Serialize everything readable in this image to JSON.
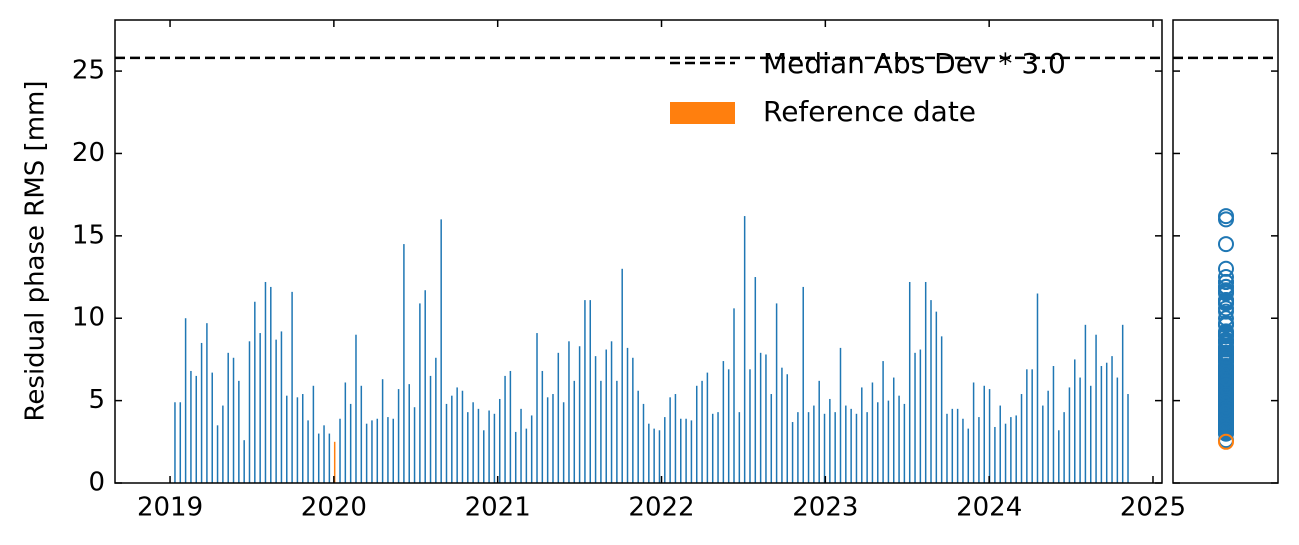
{
  "chart_data": {
    "type": "bar",
    "y_label": "Residual phase RMS [mm]",
    "x": [
      2019.03,
      2019.0625,
      2019.095,
      2019.1275,
      2019.16,
      2019.1925,
      2019.225,
      2019.2575,
      2019.29,
      2019.3225,
      2019.355,
      2019.3875,
      2019.42,
      2019.4525,
      2019.485,
      2019.5175,
      2019.55,
      2019.5825,
      2019.615,
      2019.6475,
      2019.68,
      2019.7125,
      2019.745,
      2019.7775,
      2019.81,
      2019.8425,
      2019.875,
      2019.9075,
      2019.94,
      2019.9725,
      2020.0375,
      2020.07,
      2020.1025,
      2020.135,
      2020.1675,
      2020.2,
      2020.2325,
      2020.265,
      2020.2975,
      2020.33,
      2020.3625,
      2020.395,
      2020.4275,
      2020.46,
      2020.4925,
      2020.525,
      2020.5575,
      2020.59,
      2020.6225,
      2020.655,
      2020.6875,
      2020.72,
      2020.7525,
      2020.785,
      2020.8175,
      2020.85,
      2020.8825,
      2020.915,
      2020.9475,
      2020.98,
      2021.0125,
      2021.045,
      2021.0775,
      2021.11,
      2021.1425,
      2021.175,
      2021.2075,
      2021.24,
      2021.2725,
      2021.305,
      2021.3375,
      2021.37,
      2021.4025,
      2021.435,
      2021.4675,
      2021.5,
      2021.5325,
      2021.565,
      2021.5975,
      2021.63,
      2021.6625,
      2021.695,
      2021.7275,
      2021.76,
      2021.7925,
      2021.825,
      2021.8575,
      2021.89,
      2021.9225,
      2021.955,
      2021.9875,
      2022.02,
      2022.0525,
      2022.085,
      2022.1175,
      2022.15,
      2022.1825,
      2022.215,
      2022.2475,
      2022.28,
      2022.3125,
      2022.345,
      2022.3775,
      2022.41,
      2022.4425,
      2022.475,
      2022.5075,
      2022.54,
      2022.5725,
      2022.605,
      2022.6375,
      2022.67,
      2022.7025,
      2022.735,
      2022.7675,
      2022.8,
      2022.8325,
      2022.865,
      2022.8975,
      2022.93,
      2022.9625,
      2022.995,
      2023.0275,
      2023.06,
      2023.0925,
      2023.125,
      2023.1575,
      2023.19,
      2023.2225,
      2023.255,
      2023.2875,
      2023.32,
      2023.3525,
      2023.385,
      2023.4175,
      2023.45,
      2023.4825,
      2023.515,
      2023.5475,
      2023.58,
      2023.6125,
      2023.645,
      2023.6775,
      2023.71,
      2023.7425,
      2023.775,
      2023.8075,
      2023.84,
      2023.8725,
      2023.905,
      2023.9375,
      2023.97,
      2024.0025,
      2024.035,
      2024.0675,
      2024.1,
      2024.1325,
      2024.165,
      2024.1975,
      2024.23,
      2024.2625,
      2024.295,
      2024.3275,
      2024.36,
      2024.3925,
      2024.425,
      2024.4575,
      2024.49,
      2024.5225,
      2024.555,
      2024.5875,
      2024.62,
      2024.6525,
      2024.685,
      2024.7175,
      2024.75,
      2024.7825,
      2024.815,
      2024.8475
    ],
    "values": [
      4.9,
      4.9,
      10.0,
      6.8,
      6.5,
      8.5,
      9.7,
      6.7,
      3.5,
      4.7,
      7.9,
      7.6,
      6.2,
      2.6,
      8.6,
      11.0,
      9.1,
      12.2,
      11.9,
      8.7,
      9.2,
      5.3,
      11.6,
      5.2,
      5.4,
      3.8,
      5.9,
      3.0,
      3.5,
      3.0,
      3.9,
      6.1,
      4.8,
      9.0,
      5.9,
      3.6,
      3.8,
      3.9,
      6.3,
      4.0,
      3.9,
      5.7,
      14.5,
      6.0,
      4.6,
      10.9,
      11.7,
      6.5,
      7.6,
      16.0,
      4.8,
      5.3,
      5.8,
      5.6,
      4.3,
      4.9,
      4.5,
      3.2,
      4.4,
      4.2,
      5.1,
      6.5,
      6.8,
      3.1,
      4.5,
      3.3,
      4.1,
      9.1,
      6.8,
      5.2,
      5.4,
      7.9,
      4.9,
      8.6,
      6.2,
      8.3,
      11.1,
      11.1,
      7.7,
      6.2,
      8.1,
      8.6,
      6.2,
      13.0,
      8.2,
      7.6,
      5.6,
      4.8,
      3.6,
      3.3,
      3.2,
      4.0,
      5.2,
      5.4,
      3.9,
      3.9,
      3.8,
      5.9,
      6.2,
      6.7,
      4.2,
      4.3,
      7.4,
      6.9,
      10.6,
      4.3,
      16.2,
      6.9,
      12.5,
      7.9,
      7.8,
      5.4,
      10.9,
      7.0,
      6.6,
      3.7,
      4.3,
      11.9,
      4.3,
      4.7,
      6.2,
      4.2,
      5.1,
      4.3,
      8.2,
      4.7,
      4.5,
      4.2,
      5.8,
      4.3,
      6.1,
      4.9,
      7.4,
      5.0,
      6.4,
      5.3,
      4.8,
      12.2,
      7.9,
      8.1,
      12.2,
      11.1,
      10.4,
      8.9,
      4.2,
      4.5,
      4.5,
      3.9,
      3.3,
      6.1,
      4.0,
      5.9,
      5.7,
      3.4,
      4.7,
      3.6,
      4.0,
      4.1,
      5.4,
      6.9,
      6.9,
      11.5,
      4.7,
      5.6,
      7.1,
      3.2,
      4.3,
      5.8,
      7.5,
      6.4,
      9.6,
      5.9,
      9.0,
      7.1,
      7.3,
      7.7,
      6.4,
      9.6,
      5.4
    ],
    "color": "#1f77b4",
    "reference": {
      "name": "Reference date",
      "color": "#ff7f0e",
      "x": 2020.005,
      "value": 2.5
    },
    "threshold": {
      "name": "Median Abs Dev * 3.0",
      "value": 25.8,
      "color": "#000000"
    },
    "xlim": [
      2018.664,
      2025.055
    ],
    "xticks": [
      2019,
      2020,
      2021,
      2022,
      2023,
      2024,
      2025
    ],
    "ylim": [
      0,
      28.1
    ],
    "yticks": [
      0,
      5,
      10,
      15,
      20,
      25
    ],
    "legend": "upper right"
  }
}
